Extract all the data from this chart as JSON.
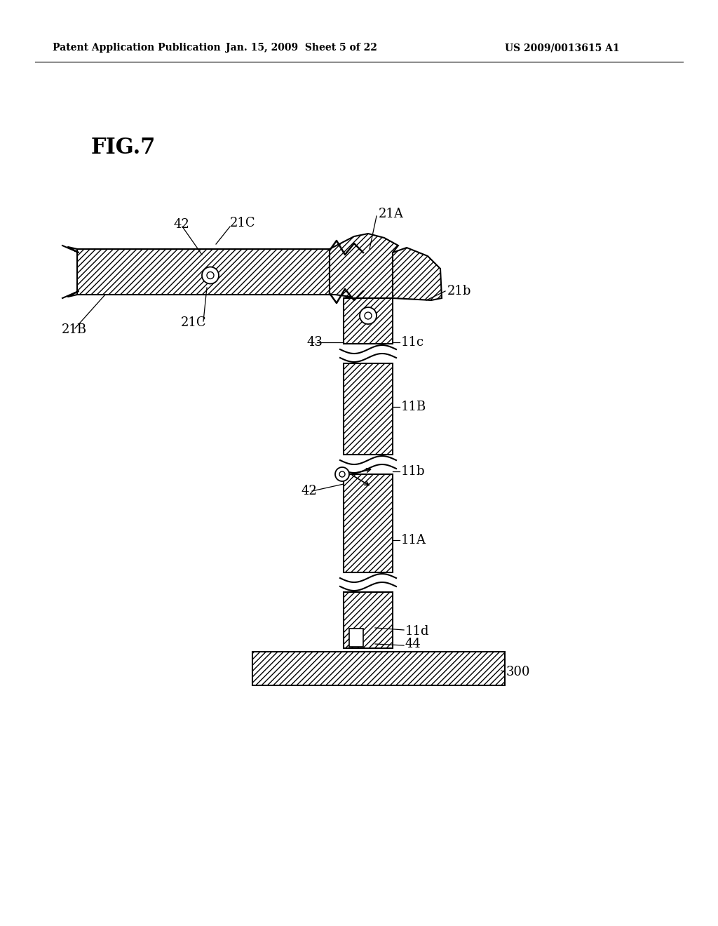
{
  "title": "FIG.7",
  "header_left": "Patent Application Publication",
  "header_center": "Jan. 15, 2009  Sheet 5 of 22",
  "header_right": "US 2009/0013615 A1",
  "bg_color": "#ffffff",
  "line_color": "#000000"
}
